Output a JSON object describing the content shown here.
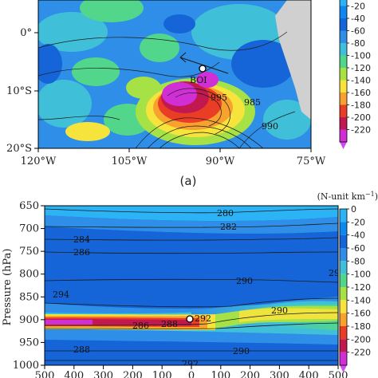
{
  "colorscale": {
    "levels": [
      "0",
      "-20",
      "-40",
      "-60",
      "-80",
      "-100",
      "-120",
      "-140",
      "-160",
      "-180",
      "-200",
      "-220"
    ],
    "colors": [
      "#2bb3f5",
      "#0e88ef",
      "#1565d8",
      "#2f8fe8",
      "#40c0d8",
      "#52d68c",
      "#a6e146",
      "#f6e43c",
      "#f7a12e",
      "#ea3d25",
      "#c21850",
      "#d02fd6"
    ],
    "min_arrow_color": "#d24bf0"
  },
  "chart_data": [
    {
      "panel": "a",
      "type": "heatmap",
      "caption": "(a)",
      "x_ticks": [
        "120°W",
        "105°W",
        "90°W",
        "75°W"
      ],
      "y_ticks": [
        "0°",
        "10°S",
        "20°S"
      ],
      "colorbar_ticks": [
        "-20",
        "-40",
        "-60",
        "-80",
        "-100",
        "-120",
        "-140",
        "-160",
        "-180",
        "-200",
        "-220"
      ],
      "annotations": [
        "BOI"
      ],
      "contour_labels": [
        "995",
        "985",
        "990"
      ]
    },
    {
      "panel": "b",
      "type": "heatmap",
      "ylabel": "Pressure (hPa)",
      "y_ticks": [
        "650",
        "700",
        "750",
        "800",
        "850",
        "900",
        "950",
        "1000"
      ],
      "x_ticks": [
        "500",
        "400",
        "300",
        "200",
        "100",
        "0",
        "100",
        "200",
        "300",
        "400",
        "500"
      ],
      "units": "(N-unit km",
      "units_exp": "−1",
      "units_end": ")",
      "colorbar_ticks": [
        "0",
        "-20",
        "-40",
        "-60",
        "-80",
        "-100",
        "-120",
        "-140",
        "-160",
        "-180",
        "-200",
        "-220"
      ],
      "contour_labels": [
        "280",
        "282",
        "284",
        "286",
        "290",
        "294",
        "286",
        "288",
        "292",
        "290",
        "288",
        "290",
        "292",
        "29"
      ],
      "ylim": [
        650,
        1000
      ]
    }
  ]
}
